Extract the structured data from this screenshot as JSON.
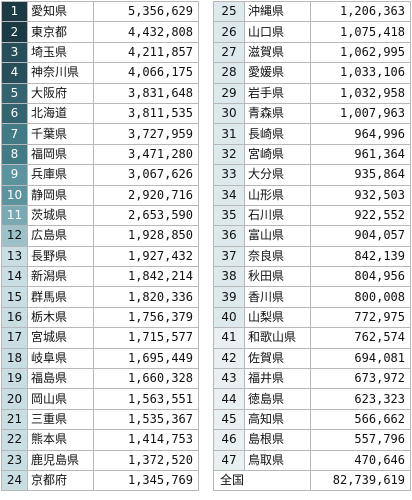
{
  "colors": {
    "rank_bg_levels": [
      "#1c3a44",
      "#274f5b",
      "#33646f",
      "#427a86",
      "#5b939e",
      "#7aa9b3",
      "#9cc1c9",
      "#c9dee3",
      "#dde9ec",
      "#e8f0f2"
    ],
    "rank_text_dark": "#ffffff",
    "rank_text_light": "#111111",
    "border": "#b8b8b8"
  },
  "left_rows": [
    {
      "rank": "1",
      "prefecture": "愛知県",
      "population": "5,356,629"
    },
    {
      "rank": "2",
      "prefecture": "東京都",
      "population": "4,432,808"
    },
    {
      "rank": "3",
      "prefecture": "埼玉県",
      "population": "4,211,857"
    },
    {
      "rank": "4",
      "prefecture": "神奈川県",
      "population": "4,066,175"
    },
    {
      "rank": "5",
      "prefecture": "大阪府",
      "population": "3,831,648"
    },
    {
      "rank": "6",
      "prefecture": "北海道",
      "population": "3,811,535"
    },
    {
      "rank": "7",
      "prefecture": "千葉県",
      "population": "3,727,959"
    },
    {
      "rank": "8",
      "prefecture": "福岡県",
      "population": "3,471,280"
    },
    {
      "rank": "9",
      "prefecture": "兵庫県",
      "population": "3,067,626"
    },
    {
      "rank": "10",
      "prefecture": "静岡県",
      "population": "2,920,716"
    },
    {
      "rank": "11",
      "prefecture": "茨城県",
      "population": "2,653,590"
    },
    {
      "rank": "12",
      "prefecture": "広島県",
      "population": "1,928,850"
    },
    {
      "rank": "13",
      "prefecture": "長野県",
      "population": "1,927,432"
    },
    {
      "rank": "14",
      "prefecture": "新潟県",
      "population": "1,842,214"
    },
    {
      "rank": "15",
      "prefecture": "群馬県",
      "population": "1,820,336"
    },
    {
      "rank": "16",
      "prefecture": "栃木県",
      "population": "1,756,379"
    },
    {
      "rank": "17",
      "prefecture": "宮城県",
      "population": "1,715,577"
    },
    {
      "rank": "18",
      "prefecture": "岐阜県",
      "population": "1,695,449"
    },
    {
      "rank": "19",
      "prefecture": "福島県",
      "population": "1,660,328"
    },
    {
      "rank": "20",
      "prefecture": "岡山県",
      "population": "1,563,551"
    },
    {
      "rank": "21",
      "prefecture": "三重県",
      "population": "1,535,367"
    },
    {
      "rank": "22",
      "prefecture": "熊本県",
      "population": "1,414,753"
    },
    {
      "rank": "23",
      "prefecture": "鹿児島県",
      "population": "1,372,520"
    },
    {
      "rank": "24",
      "prefecture": "京都府",
      "population": "1,345,769"
    }
  ],
  "right_rows": [
    {
      "rank": "25",
      "prefecture": "沖縄県",
      "population": "1,206,363"
    },
    {
      "rank": "26",
      "prefecture": "山口県",
      "population": "1,075,418"
    },
    {
      "rank": "27",
      "prefecture": "滋賀県",
      "population": "1,062,995"
    },
    {
      "rank": "28",
      "prefecture": "愛媛県",
      "population": "1,033,106"
    },
    {
      "rank": "29",
      "prefecture": "岩手県",
      "population": "1,032,958"
    },
    {
      "rank": "30",
      "prefecture": "青森県",
      "population": "1,007,963"
    },
    {
      "rank": "31",
      "prefecture": "長崎県",
      "population": "964,996"
    },
    {
      "rank": "32",
      "prefecture": "宮崎県",
      "population": "961,364"
    },
    {
      "rank": "33",
      "prefecture": "大分県",
      "population": "935,864"
    },
    {
      "rank": "34",
      "prefecture": "山形県",
      "population": "932,503"
    },
    {
      "rank": "35",
      "prefecture": "石川県",
      "population": "922,552"
    },
    {
      "rank": "36",
      "prefecture": "富山県",
      "population": "904,057"
    },
    {
      "rank": "37",
      "prefecture": "奈良県",
      "population": "842,139"
    },
    {
      "rank": "38",
      "prefecture": "秋田県",
      "population": "804,956"
    },
    {
      "rank": "39",
      "prefecture": "香川県",
      "population": "800,008"
    },
    {
      "rank": "40",
      "prefecture": "山梨県",
      "population": "772,975"
    },
    {
      "rank": "41",
      "prefecture": "和歌山県",
      "population": "762,574"
    },
    {
      "rank": "42",
      "prefecture": "佐賀県",
      "population": "694,081"
    },
    {
      "rank": "43",
      "prefecture": "福井県",
      "population": "673,972"
    },
    {
      "rank": "44",
      "prefecture": "徳島県",
      "population": "623,323"
    },
    {
      "rank": "45",
      "prefecture": "高知県",
      "population": "566,662"
    },
    {
      "rank": "46",
      "prefecture": "島根県",
      "population": "557,796"
    },
    {
      "rank": "47",
      "prefecture": "鳥取県",
      "population": "470,646"
    }
  ],
  "total": {
    "label": "全国",
    "population": "82,739,619"
  }
}
